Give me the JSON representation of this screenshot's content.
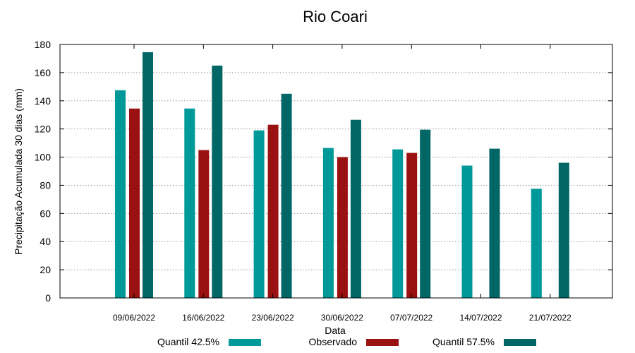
{
  "chart_data": {
    "type": "bar",
    "title": "Rio Coari",
    "xlabel": "Data",
    "ylabel": "Precipitação Acumulada 30 dias (mm)",
    "ylim": [
      0,
      180
    ],
    "yticks": [
      0,
      20,
      40,
      60,
      80,
      100,
      120,
      140,
      160,
      180
    ],
    "grid": true,
    "legend_position": "bottom",
    "categories": [
      "09/06/2022",
      "16/06/2022",
      "23/06/2022",
      "30/06/2022",
      "07/07/2022",
      "14/07/2022",
      "21/07/2022"
    ],
    "series": [
      {
        "name": "Quantil 42.5%",
        "color": "#009999",
        "values": [
          147.5,
          134.5,
          119,
          106.5,
          105.5,
          94,
          77.5
        ]
      },
      {
        "name": "Observado",
        "color": "#991111",
        "values": [
          134.5,
          105,
          123,
          100,
          103,
          null,
          null
        ]
      },
      {
        "name": "Quantil 57.5%",
        "color": "#006666",
        "values": [
          174.5,
          165,
          145,
          126.5,
          119.5,
          106,
          96
        ]
      }
    ]
  }
}
